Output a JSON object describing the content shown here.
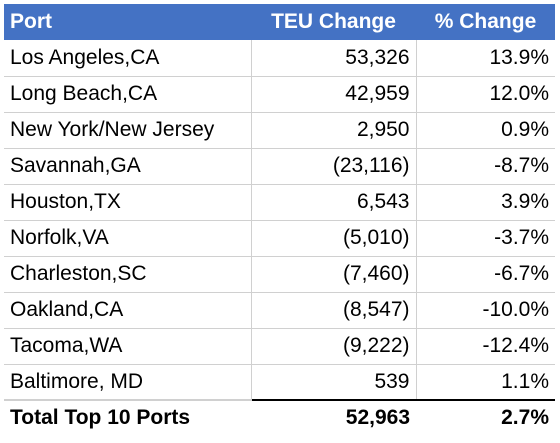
{
  "colors": {
    "header_bg": "#4472C4",
    "header_text": "#FFFFFF",
    "grid": "#D0D0D0",
    "text": "#000000"
  },
  "table": {
    "headers": [
      "Port",
      "TEU Change",
      "% Change"
    ],
    "rows": [
      {
        "port": "Los Angeles,CA",
        "teu": "53,326",
        "pct": "13.9%"
      },
      {
        "port": "Long Beach,CA",
        "teu": "42,959",
        "pct": "12.0%"
      },
      {
        "port": "New York/New Jersey",
        "teu": "2,950",
        "pct": "0.9%"
      },
      {
        "port": "Savannah,GA",
        "teu": "(23,116)",
        "pct": "-8.7%"
      },
      {
        "port": "Houston,TX",
        "teu": "6,543",
        "pct": "3.9%"
      },
      {
        "port": "Norfolk,VA",
        "teu": "(5,010)",
        "pct": "-3.7%"
      },
      {
        "port": "Charleston,SC",
        "teu": "(7,460)",
        "pct": "-6.7%"
      },
      {
        "port": "Oakland,CA",
        "teu": "(8,547)",
        "pct": "-10.0%"
      },
      {
        "port": "Tacoma,WA",
        "teu": "(9,222)",
        "pct": "-12.4%"
      },
      {
        "port": "Baltimore, MD",
        "teu": "539",
        "pct": "1.1%"
      }
    ],
    "total": {
      "port": "Total Top 10 Ports",
      "teu": "52,963",
      "pct": "2.7%"
    }
  }
}
